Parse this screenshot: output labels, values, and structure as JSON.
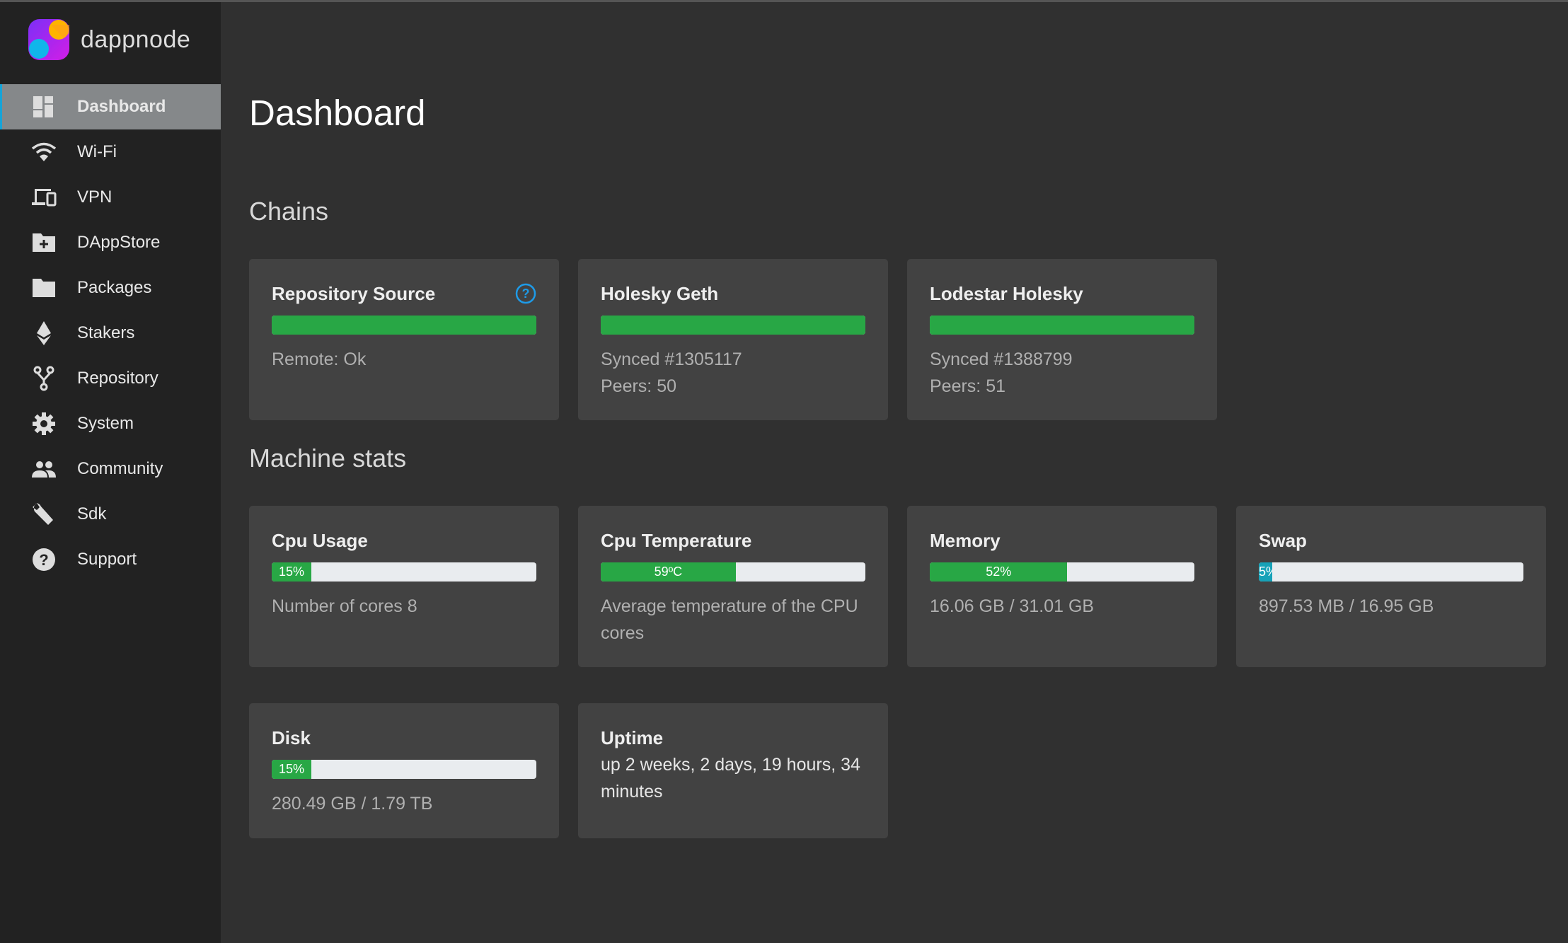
{
  "app": {
    "logo_text": "dappnode"
  },
  "sidebar": {
    "items": [
      {
        "label": "Dashboard",
        "icon": "dashboard-icon",
        "active": true
      },
      {
        "label": "Wi-Fi",
        "icon": "wifi-icon"
      },
      {
        "label": "VPN",
        "icon": "devices-icon"
      },
      {
        "label": "DAppStore",
        "icon": "folder-plus-icon"
      },
      {
        "label": "Packages",
        "icon": "folder-icon"
      },
      {
        "label": "Stakers",
        "icon": "ethereum-icon"
      },
      {
        "label": "Repository",
        "icon": "fork-icon"
      },
      {
        "label": "System",
        "icon": "gear-icon"
      },
      {
        "label": "Community",
        "icon": "people-icon"
      },
      {
        "label": "Sdk",
        "icon": "wrench-icon"
      },
      {
        "label": "Support",
        "icon": "help-icon"
      }
    ]
  },
  "page": {
    "title": "Dashboard",
    "chains_heading": "Chains",
    "stats_heading": "Machine stats"
  },
  "chains": [
    {
      "title": "Repository Source",
      "progress": 100,
      "lines": [
        "Remote: Ok"
      ],
      "help_icon": "question-circle-icon"
    },
    {
      "title": "Holesky Geth",
      "progress": 100,
      "lines": [
        "Synced #1305117",
        "Peers: 50"
      ]
    },
    {
      "title": "Lodestar Holesky",
      "progress": 100,
      "lines": [
        "Synced #1388799",
        "Peers: 51"
      ]
    }
  ],
  "stats": {
    "cpu": {
      "title": "Cpu Usage",
      "percent": 15,
      "label": "15%",
      "text": "Number of cores 8"
    },
    "temp": {
      "title": "Cpu Temperature",
      "percent": 51,
      "label": "59ºC",
      "text": "Average temperature of the CPU cores"
    },
    "memory": {
      "title": "Memory",
      "percent": 52,
      "label": "52%",
      "text": "16.06 GB / 31.01 GB"
    },
    "swap": {
      "title": "Swap",
      "percent": 5,
      "label": "5%",
      "text": "897.53 MB / 16.95 GB",
      "color": "#17a2b8"
    },
    "disk": {
      "title": "Disk",
      "percent": 15,
      "label": "15%",
      "text": "280.49 GB / 1.79 TB"
    },
    "uptime": {
      "title": "Uptime",
      "text": "up 2 weeks, 2 days, 19 hours, 34 minutes"
    }
  },
  "colors": {
    "success": "#28a745",
    "info": "#17a2b8",
    "accent": "#16a4d8"
  }
}
